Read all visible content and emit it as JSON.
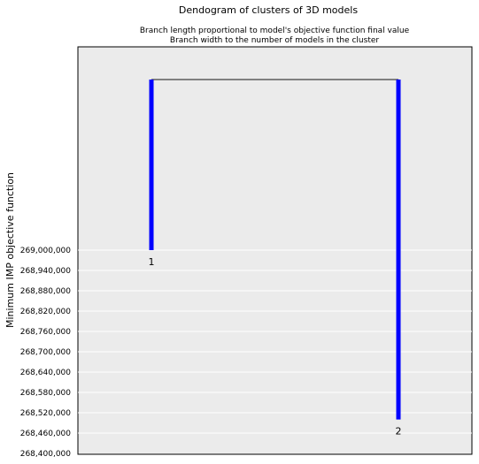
{
  "chart_data": {
    "type": "dendrogram",
    "title": "Dendogram of clusters of 3D models",
    "subtitle_lines": [
      "Branch length proportional to model's objective function final value",
      "Branch width to the number of models in the cluster"
    ],
    "xlabel": "",
    "ylabel": "Minimum IMP objective function",
    "ylim": [
      268400000,
      269000000
    ],
    "yticks": [
      268400000,
      268460000,
      268520000,
      268580000,
      268640000,
      268700000,
      268760000,
      268820000,
      268880000,
      268940000,
      269000000
    ],
    "ytick_labels": [
      "268,400,000",
      "268,460,000",
      "268,520,000",
      "268,580,000",
      "268,640,000",
      "268,700,000",
      "268,760,000",
      "268,820,000",
      "268,880,000",
      "268,940,000",
      "269,000,000"
    ],
    "grid": true,
    "leaves": [
      {
        "label": "1",
        "value": 269000000
      },
      {
        "label": "2",
        "value": 268500000
      }
    ],
    "branch_color": "#0000ff",
    "link_color": "#808080",
    "background": "#ebebeb"
  }
}
